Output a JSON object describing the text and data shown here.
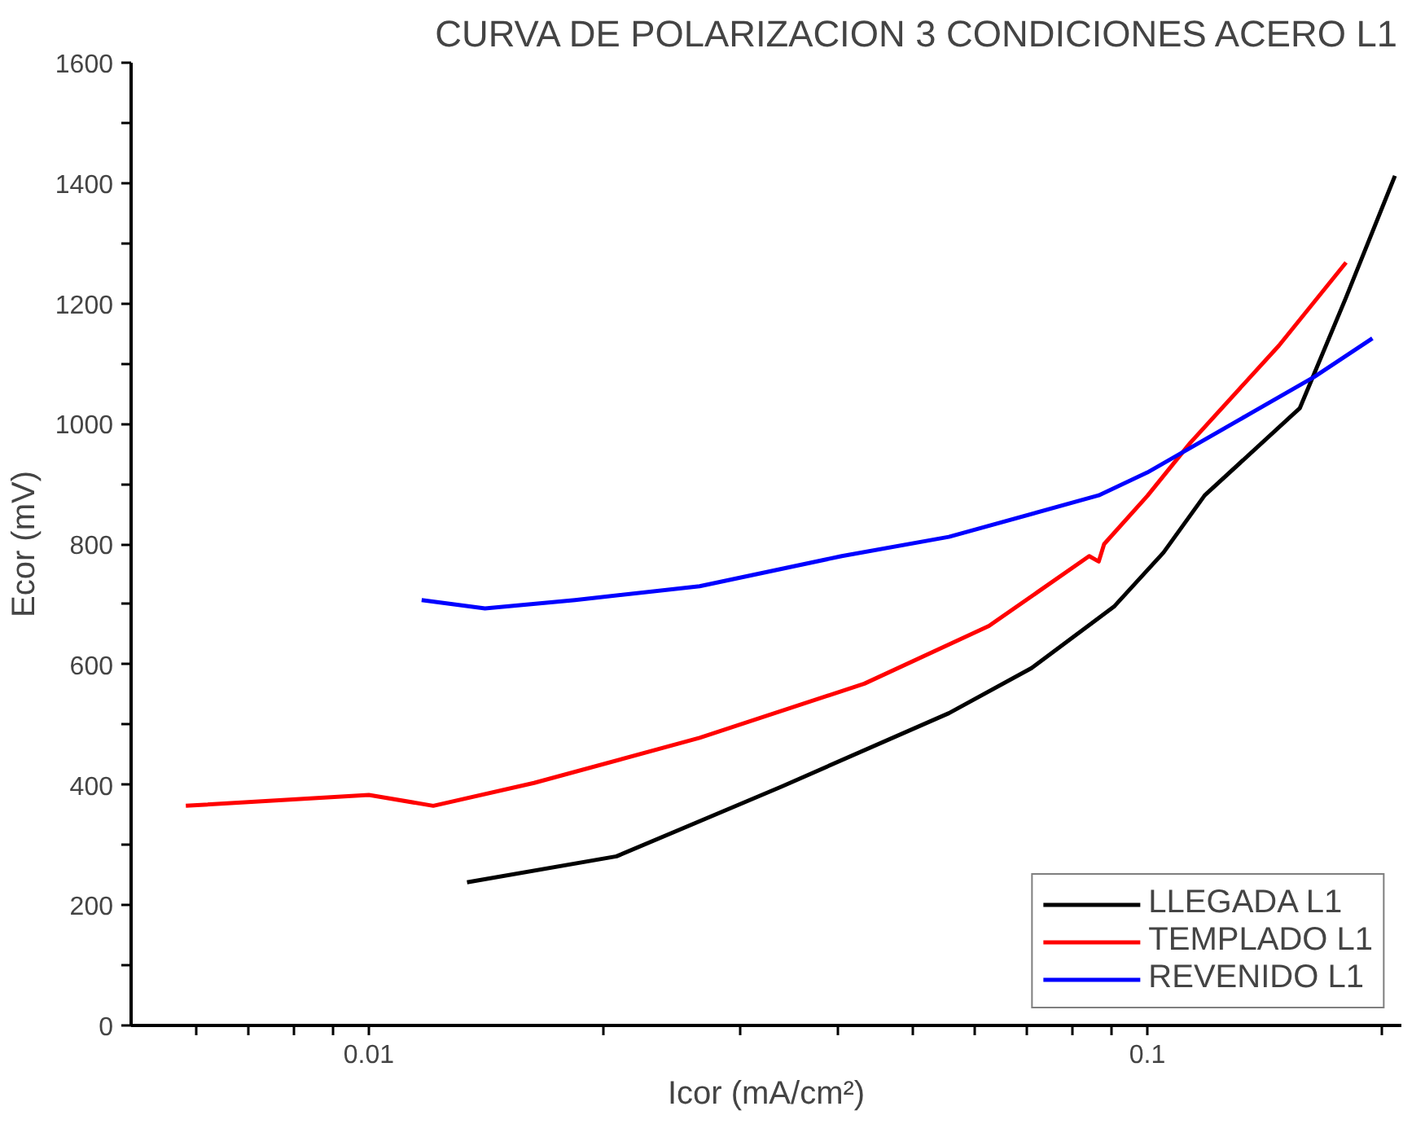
{
  "chart_data": {
    "type": "line",
    "title": "CURVA DE POLARIZACION 3 CONDICIONES ACERO L1",
    "xlabel": "Icor (mA/cm²)",
    "ylabel": "Ecor (mV)",
    "log": "x",
    "grid": false,
    "legend": "bottom right",
    "marker": "none",
    "line_style": "solid",
    "xlim": [
      0.00495,
      0.212
    ],
    "ylim": [
      0,
      1600
    ],
    "xticks": [
      {
        "value": 0.006,
        "label": null
      },
      {
        "value": 0.007,
        "label": null
      },
      {
        "value": 0.008,
        "label": null
      },
      {
        "value": 0.009,
        "label": null
      },
      {
        "value": 0.01,
        "label": "0.01"
      },
      {
        "value": 0.02,
        "label": null
      },
      {
        "value": 0.03,
        "label": null
      },
      {
        "value": 0.04,
        "label": null
      },
      {
        "value": 0.05,
        "label": null
      },
      {
        "value": 0.06,
        "label": null
      },
      {
        "value": 0.07,
        "label": null
      },
      {
        "value": 0.08,
        "label": null
      },
      {
        "value": 0.09,
        "label": null
      },
      {
        "value": 0.1,
        "label": "0.1"
      },
      {
        "value": 0.2,
        "label": null
      }
    ],
    "yticks": [
      0,
      {
        "value": 100,
        "label": null
      },
      200,
      {
        "value": 300,
        "label": null
      },
      400,
      {
        "value": 500,
        "label": null
      },
      600,
      {
        "value": 700,
        "label": null
      },
      800,
      {
        "value": 900,
        "label": null
      },
      1000,
      {
        "value": 1100,
        "label": null
      },
      1200,
      {
        "value": 1300,
        "label": null
      },
      1400,
      {
        "value": 1500,
        "label": null
      },
      1600
    ],
    "series": [
      {
        "name": "LLEGADA L1",
        "color": "#000000",
        "x": [
          0.01337,
          0.0208,
          0.0339,
          0.0556,
          0.071,
          0.0906,
          0.1049,
          0.1185,
          0.157,
          0.18,
          0.208
        ],
        "values": [
          238,
          281,
          397,
          519,
          594,
          696,
          786,
          881,
          1026,
          1210,
          1412
        ]
      },
      {
        "name": "TEMPLADO L1",
        "color": "#ff0000",
        "x": [
          0.00582,
          0.01,
          0.0121,
          0.0163,
          0.0266,
          0.0433,
          0.0626,
          0.0842,
          0.0866,
          0.088,
          0.1,
          0.1135,
          0.1476,
          0.18
        ],
        "values": [
          365,
          383,
          365,
          403,
          478,
          568,
          664,
          780,
          771,
          800,
          880,
          968,
          1130,
          1268
        ]
      },
      {
        "name": "REVENIDO L1",
        "color": "#0000ff",
        "x": [
          0.01169,
          0.0141,
          0.0184,
          0.0266,
          0.0405,
          0.0556,
          0.0866,
          0.1,
          0.1639,
          0.1946
        ],
        "values": [
          707,
          693,
          707,
          730,
          780,
          812,
          881,
          919,
          1078,
          1142
        ]
      }
    ]
  }
}
